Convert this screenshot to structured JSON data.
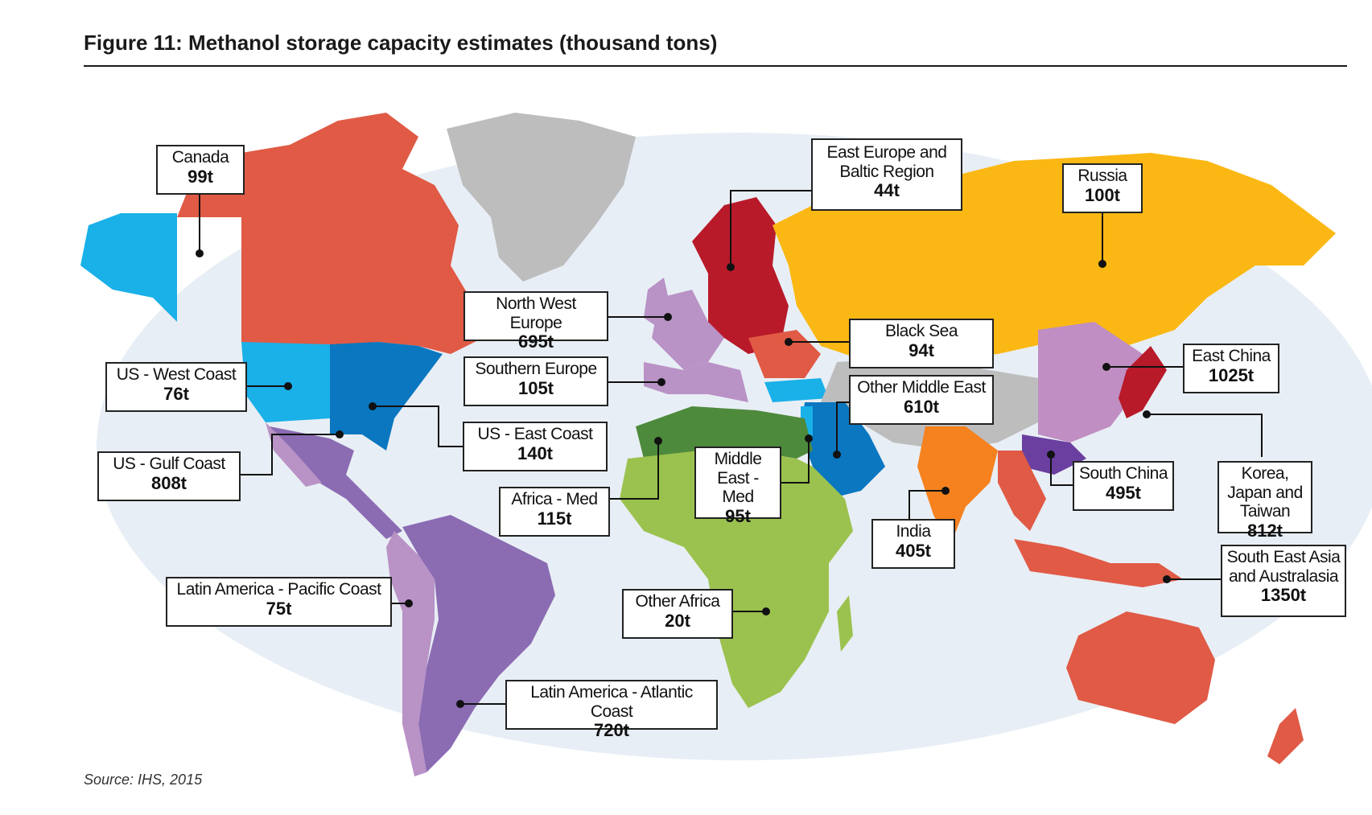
{
  "title": "Figure 11: Methanol storage capacity estimates (thousand tons)",
  "source": "Source: IHS, 2015",
  "colors": {
    "ocean": "#e8eef5",
    "north_america_red": "#e05a45",
    "us_light_blue": "#1ab0e8",
    "us_dark_blue": "#0a77c0",
    "latam_purple": "#8b6cb3",
    "latam_pacific_lilac": "#b992c6",
    "east_europe_dark_red": "#b81a2a",
    "russia_yellow": "#fbb814",
    "africa_med_green": "#4e8a3c",
    "other_africa_green": "#9bc24e",
    "middle_east_blue": "#0a77c0",
    "india_orange": "#f5821f",
    "south_china_purple": "#6a3fa0",
    "east_china_lilac": "#c08ec2",
    "greenland_grey": "#bdbdbd"
  },
  "regions": [
    {
      "name": "Canada",
      "value": "99t"
    },
    {
      "name": "East Europe and Baltic Region",
      "value": "44t"
    },
    {
      "name": "Russia",
      "value": "100t"
    },
    {
      "name": "North West Europe",
      "value": "695t"
    },
    {
      "name": "Black Sea",
      "value": "94t"
    },
    {
      "name": "East China",
      "value": "1025t"
    },
    {
      "name": "US - West Coast",
      "value": "76t"
    },
    {
      "name": "Southern Europe",
      "value": "105t"
    },
    {
      "name": "Other Middle East",
      "value": "610t"
    },
    {
      "name": "US - East Coast",
      "value": "140t"
    },
    {
      "name": "Middle East - Med",
      "value": "95t"
    },
    {
      "name": "US - Gulf Coast",
      "value": "808t"
    },
    {
      "name": "South China",
      "value": "495t"
    },
    {
      "name": "Korea, Japan and Taiwan",
      "value": "812t"
    },
    {
      "name": "Africa - Med",
      "value": "115t"
    },
    {
      "name": "India",
      "value": "405t"
    },
    {
      "name": "South East Asia and Australasia",
      "value": "1350t"
    },
    {
      "name": "Latin America - Pacific Coast",
      "value": "75t"
    },
    {
      "name": "Other Africa",
      "value": "20t"
    },
    {
      "name": "Latin America - Atlantic Coast",
      "value": "720t"
    }
  ]
}
